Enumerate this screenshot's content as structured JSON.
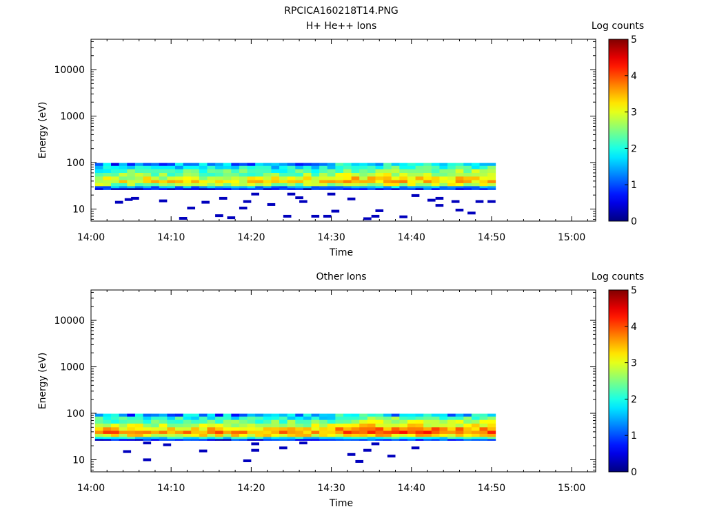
{
  "figure_title": "RPCICA160218T14.PNG",
  "chart_data": [
    {
      "type": "heatmap",
      "title": "H+ He++ Ions",
      "xlabel": "Time",
      "ylabel": "Energy (eV)",
      "xticks": [
        "14:00",
        "14:10",
        "14:20",
        "14:30",
        "14:40",
        "14:50",
        "15:00"
      ],
      "xlim_minutes": [
        0,
        63
      ],
      "yscale": "log",
      "ylim": [
        5.5,
        45000
      ],
      "yticks": [
        10,
        100,
        1000,
        10000
      ],
      "ytick_labels": [
        "10",
        "100",
        "1000",
        "10000"
      ],
      "colorbar": {
        "label": "Log counts",
        "min": 0,
        "max": 5,
        "ticks": [
          "0",
          "1",
          "2",
          "3",
          "4",
          "5"
        ]
      },
      "data_time_range_minutes": [
        0.5,
        50.5
      ],
      "band_profile": [
        {
          "energy_low": 85,
          "energy_high": 98,
          "log_counts": 1.5
        },
        {
          "energy_low": 72,
          "energy_high": 85,
          "log_counts": 1.8
        },
        {
          "energy_low": 60,
          "energy_high": 72,
          "log_counts": 2.2
        },
        {
          "energy_low": 50,
          "energy_high": 60,
          "log_counts": 2.5
        },
        {
          "energy_low": 42,
          "energy_high": 50,
          "log_counts": 2.9
        },
        {
          "energy_low": 36,
          "energy_high": 42,
          "log_counts": 3.15
        },
        {
          "energy_low": 31,
          "energy_high": 36,
          "log_counts": 2.6
        },
        {
          "energy_low": 28,
          "energy_high": 31,
          "log_counts": 1.3
        },
        {
          "energy_low": 26,
          "energy_high": 28,
          "log_counts": 0.6
        }
      ],
      "gradient_increase_after_minute": 30,
      "sparse_counts_log": 0.3,
      "sparse_hits": [
        {
          "t": 3.0,
          "e": 14
        },
        {
          "t": 4.2,
          "e": 16
        },
        {
          "t": 5.0,
          "e": 17
        },
        {
          "t": 8.5,
          "e": 15
        },
        {
          "t": 11.0,
          "e": 6.3
        },
        {
          "t": 12.0,
          "e": 10.5
        },
        {
          "t": 13.8,
          "e": 14
        },
        {
          "t": 16.0,
          "e": 17
        },
        {
          "t": 15.5,
          "e": 7.2
        },
        {
          "t": 17.0,
          "e": 6.5
        },
        {
          "t": 18.5,
          "e": 10.5
        },
        {
          "t": 19.0,
          "e": 14.5
        },
        {
          "t": 20.0,
          "e": 21
        },
        {
          "t": 22.0,
          "e": 12.5
        },
        {
          "t": 24.0,
          "e": 7.0
        },
        {
          "t": 24.5,
          "e": 21
        },
        {
          "t": 25.5,
          "e": 17.5
        },
        {
          "t": 26.0,
          "e": 14.5
        },
        {
          "t": 27.5,
          "e": 7.0
        },
        {
          "t": 29.0,
          "e": 7.0
        },
        {
          "t": 30.0,
          "e": 9.0
        },
        {
          "t": 29.5,
          "e": 21
        },
        {
          "t": 32.0,
          "e": 16.5
        },
        {
          "t": 34.0,
          "e": 6.2
        },
        {
          "t": 35.0,
          "e": 7.0
        },
        {
          "t": 35.5,
          "e": 9.2
        },
        {
          "t": 38.5,
          "e": 6.8
        },
        {
          "t": 40.0,
          "e": 19.5
        },
        {
          "t": 42.0,
          "e": 15.5
        },
        {
          "t": 43.0,
          "e": 17
        },
        {
          "t": 43.0,
          "e": 12.0
        },
        {
          "t": 45.5,
          "e": 9.5
        },
        {
          "t": 45.0,
          "e": 14.5
        },
        {
          "t": 47.0,
          "e": 8.2
        },
        {
          "t": 48.0,
          "e": 14.5
        },
        {
          "t": 49.5,
          "e": 14.5
        }
      ]
    },
    {
      "type": "heatmap",
      "title": "Other Ions",
      "xlabel": "Time",
      "ylabel": "Energy (eV)",
      "xticks": [
        "14:00",
        "14:10",
        "14:20",
        "14:30",
        "14:40",
        "14:50",
        "15:00"
      ],
      "xlim_minutes": [
        0,
        63
      ],
      "yscale": "log",
      "ylim": [
        5.5,
        45000
      ],
      "yticks": [
        10,
        100,
        1000,
        10000
      ],
      "ytick_labels": [
        "10",
        "100",
        "1000",
        "10000"
      ],
      "colorbar": {
        "label": "Log counts",
        "min": 0,
        "max": 5,
        "ticks": [
          "0",
          "1",
          "2",
          "3",
          "4",
          "5"
        ]
      },
      "data_time_range_minutes": [
        0.5,
        50.5
      ],
      "band_profile": [
        {
          "energy_low": 85,
          "energy_high": 98,
          "log_counts": 1.6
        },
        {
          "energy_low": 72,
          "energy_high": 85,
          "log_counts": 2.0
        },
        {
          "energy_low": 60,
          "energy_high": 72,
          "log_counts": 2.4
        },
        {
          "energy_low": 50,
          "energy_high": 60,
          "log_counts": 2.8
        },
        {
          "energy_low": 42,
          "energy_high": 50,
          "log_counts": 3.3
        },
        {
          "energy_low": 36,
          "energy_high": 42,
          "log_counts": 3.7
        },
        {
          "energy_low": 31,
          "energy_high": 36,
          "log_counts": 3.1
        },
        {
          "energy_low": 28,
          "energy_high": 31,
          "log_counts": 1.8
        },
        {
          "energy_low": 26,
          "energy_high": 28,
          "log_counts": 0.7
        }
      ],
      "gradient_increase_after_minute": 30,
      "sparse_counts_log": 0.3,
      "sparse_hits": [
        {
          "t": 4.0,
          "e": 15
        },
        {
          "t": 6.5,
          "e": 10.0
        },
        {
          "t": 6.5,
          "e": 23
        },
        {
          "t": 9.0,
          "e": 21
        },
        {
          "t": 13.5,
          "e": 15.5
        },
        {
          "t": 19.0,
          "e": 9.5
        },
        {
          "t": 20.0,
          "e": 16
        },
        {
          "t": 20.0,
          "e": 22
        },
        {
          "t": 23.5,
          "e": 18
        },
        {
          "t": 26.0,
          "e": 23
        },
        {
          "t": 32.0,
          "e": 13.0
        },
        {
          "t": 33.0,
          "e": 9.2
        },
        {
          "t": 34.0,
          "e": 16
        },
        {
          "t": 35.0,
          "e": 22
        },
        {
          "t": 37.0,
          "e": 12.0
        },
        {
          "t": 40.0,
          "e": 18
        }
      ]
    }
  ]
}
